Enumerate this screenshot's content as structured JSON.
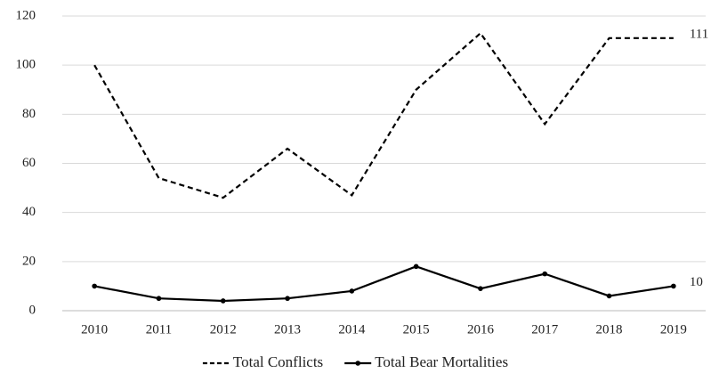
{
  "chart_data": {
    "type": "line",
    "categories": [
      "2010",
      "2011",
      "2012",
      "2013",
      "2014",
      "2015",
      "2016",
      "2017",
      "2018",
      "2019"
    ],
    "series": [
      {
        "name": "Total Conflicts",
        "color": "#000000",
        "dash": true,
        "markers": false,
        "values": [
          100,
          54,
          46,
          66,
          47,
          90,
          113,
          76,
          111,
          111
        ]
      },
      {
        "name": "Total Bear Mortalities",
        "color": "#000000",
        "dash": false,
        "markers": true,
        "values": [
          10,
          5,
          4,
          5,
          8,
          18,
          9,
          15,
          6,
          10
        ]
      }
    ],
    "label_last": true,
    "ylim": [
      0,
      120
    ],
    "yticks": [
      0,
      20,
      40,
      60,
      80,
      100,
      120
    ],
    "grid": true,
    "legend": "bottom"
  }
}
